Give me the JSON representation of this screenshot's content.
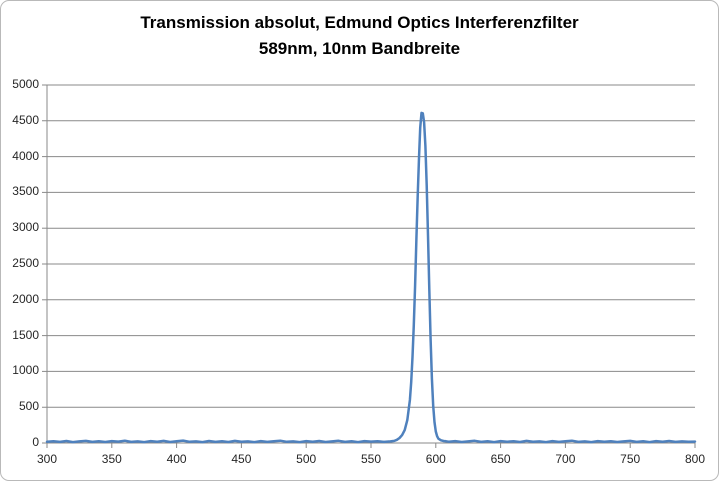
{
  "chart_data": {
    "type": "line",
    "title": "Transmission absolut, Edmund Optics Interferenzfilter 589nm, 10nm Bandbreite",
    "title_lines": [
      "Transmission absolut, Edmund Optics Interferenzfilter",
      "589nm, 10nm Bandbreite"
    ],
    "xlabel": "",
    "ylabel": "",
    "xlim": [
      300,
      800
    ],
    "ylim": [
      0,
      5000
    ],
    "xticks": [
      300,
      350,
      400,
      450,
      500,
      550,
      600,
      650,
      700,
      750,
      800
    ],
    "yticks": [
      0,
      500,
      1000,
      1500,
      2000,
      2500,
      3000,
      3500,
      4000,
      4500,
      5000
    ],
    "grid": "horizontal",
    "legend": "none",
    "series_color": "#4f81bd",
    "gridline_color": "#898989",
    "axis_color": "#898989",
    "tick_label_color": "#262626",
    "peak_wavelength_nm": 589,
    "peak_value": 4620,
    "bandwidth_fwhm_nm": 10,
    "points": [
      [
        300,
        18
      ],
      [
        305,
        25
      ],
      [
        310,
        15
      ],
      [
        315,
        28
      ],
      [
        320,
        12
      ],
      [
        325,
        22
      ],
      [
        330,
        30
      ],
      [
        335,
        16
      ],
      [
        340,
        24
      ],
      [
        345,
        14
      ],
      [
        350,
        27
      ],
      [
        355,
        19
      ],
      [
        360,
        32
      ],
      [
        365,
        15
      ],
      [
        370,
        23
      ],
      [
        375,
        13
      ],
      [
        380,
        26
      ],
      [
        385,
        18
      ],
      [
        390,
        29
      ],
      [
        395,
        14
      ],
      [
        400,
        24
      ],
      [
        405,
        33
      ],
      [
        410,
        17
      ],
      [
        415,
        22
      ],
      [
        420,
        12
      ],
      [
        425,
        28
      ],
      [
        430,
        16
      ],
      [
        435,
        25
      ],
      [
        440,
        14
      ],
      [
        445,
        30
      ],
      [
        450,
        18
      ],
      [
        455,
        23
      ],
      [
        460,
        13
      ],
      [
        465,
        27
      ],
      [
        470,
        15
      ],
      [
        475,
        24
      ],
      [
        480,
        32
      ],
      [
        485,
        17
      ],
      [
        490,
        22
      ],
      [
        495,
        12
      ],
      [
        500,
        26
      ],
      [
        505,
        18
      ],
      [
        510,
        28
      ],
      [
        515,
        14
      ],
      [
        520,
        23
      ],
      [
        525,
        31
      ],
      [
        530,
        16
      ],
      [
        535,
        24
      ],
      [
        540,
        13
      ],
      [
        545,
        27
      ],
      [
        550,
        19
      ],
      [
        555,
        25
      ],
      [
        560,
        15
      ],
      [
        565,
        22
      ],
      [
        568,
        30
      ],
      [
        570,
        45
      ],
      [
        572,
        70
      ],
      [
        574,
        110
      ],
      [
        576,
        180
      ],
      [
        578,
        320
      ],
      [
        580,
        600
      ],
      [
        581,
        850
      ],
      [
        582,
        1200
      ],
      [
        583,
        1650
      ],
      [
        584,
        2200
      ],
      [
        585,
        2850
      ],
      [
        586,
        3450
      ],
      [
        587,
        3980
      ],
      [
        588,
        4400
      ],
      [
        589,
        4610
      ],
      [
        590,
        4605
      ],
      [
        591,
        4480
      ],
      [
        592,
        4150
      ],
      [
        593,
        3600
      ],
      [
        594,
        2900
      ],
      [
        595,
        2150
      ],
      [
        596,
        1450
      ],
      [
        597,
        900
      ],
      [
        598,
        520
      ],
      [
        599,
        290
      ],
      [
        600,
        160
      ],
      [
        601,
        95
      ],
      [
        602,
        60
      ],
      [
        604,
        38
      ],
      [
        606,
        28
      ],
      [
        608,
        24
      ],
      [
        610,
        18
      ],
      [
        615,
        26
      ],
      [
        620,
        14
      ],
      [
        625,
        23
      ],
      [
        630,
        31
      ],
      [
        635,
        16
      ],
      [
        640,
        25
      ],
      [
        645,
        13
      ],
      [
        650,
        27
      ],
      [
        655,
        18
      ],
      [
        660,
        24
      ],
      [
        665,
        14
      ],
      [
        670,
        29
      ],
      [
        675,
        17
      ],
      [
        680,
        23
      ],
      [
        685,
        12
      ],
      [
        690,
        26
      ],
      [
        695,
        15
      ],
      [
        700,
        24
      ],
      [
        705,
        32
      ],
      [
        710,
        16
      ],
      [
        715,
        22
      ],
      [
        720,
        13
      ],
      [
        725,
        27
      ],
      [
        730,
        18
      ],
      [
        735,
        25
      ],
      [
        740,
        14
      ],
      [
        745,
        23
      ],
      [
        750,
        30
      ],
      [
        755,
        16
      ],
      [
        760,
        24
      ],
      [
        765,
        13
      ],
      [
        770,
        26
      ],
      [
        775,
        18
      ],
      [
        780,
        28
      ],
      [
        785,
        15
      ],
      [
        790,
        22
      ],
      [
        795,
        17
      ],
      [
        800,
        20
      ]
    ]
  }
}
